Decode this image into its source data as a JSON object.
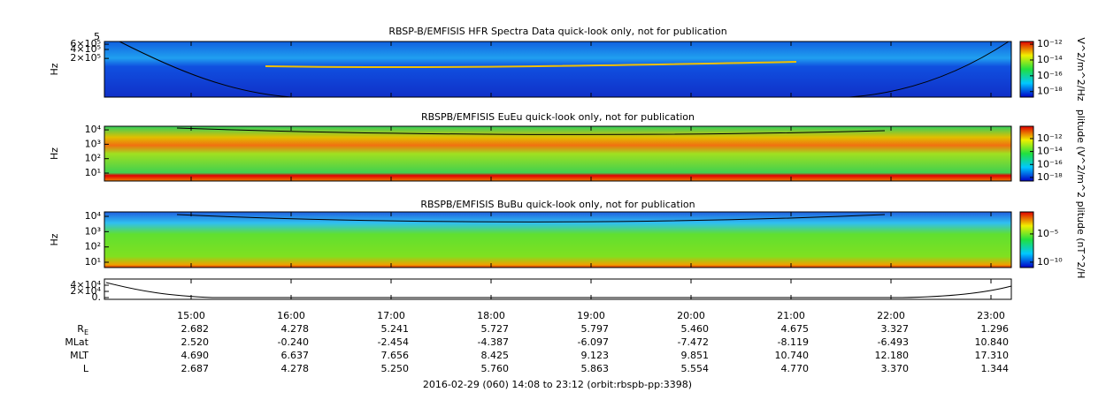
{
  "panels": [
    {
      "title": "RBSP-B/EMFISIS  HFR Spectra Data quick-look only, not for publication",
      "ylabel": "Hz",
      "top_label": "5",
      "log": true,
      "ylim": [
        10000,
        740000
      ],
      "yticks": [
        {
          "value": 600000,
          "label": "6×10⁵"
        },
        {
          "value": 400000,
          "label": "4×10⁵"
        },
        {
          "value": 200000,
          "label": "2×10⁵"
        }
      ],
      "colorbar": {
        "label": "V^2/m^2/Hz",
        "clim": [
          2e-19,
          2.2e-12
        ],
        "ticks": [
          {
            "value": 1e-12,
            "label": "10⁻¹²"
          },
          {
            "value": 1e-14,
            "label": "10⁻¹⁴"
          },
          {
            "value": 1e-16,
            "label": "10⁻¹⁶"
          },
          {
            "value": 1e-18,
            "label": "10⁻¹⁸"
          }
        ]
      }
    },
    {
      "title": "RBSPB/EMFISIS  EuEu quick-look only, not for publication",
      "ylabel": "Hz",
      "log": true,
      "ylim": [
        2.8,
        17800
      ],
      "yticks": [
        {
          "value": 10000,
          "label": "10⁴"
        },
        {
          "value": 1000,
          "label": "10³"
        },
        {
          "value": 100,
          "label": "10²"
        },
        {
          "value": 10,
          "label": "10¹"
        }
      ],
      "colorbar": {
        "label": "plitude (V^2/m^2",
        "clim": [
          2.8e-19,
          8e-11
        ],
        "ticks": [
          {
            "value": 1e-12,
            "label": "10⁻¹²"
          },
          {
            "value": 1e-14,
            "label": "10⁻¹⁴"
          },
          {
            "value": 1e-16,
            "label": "10⁻¹⁶"
          },
          {
            "value": 1e-18,
            "label": "10⁻¹⁸"
          }
        ]
      }
    },
    {
      "title": "RBSPB/EMFISIS  BuBu quick-look only, not for publication",
      "ylabel": "Hz",
      "log": true,
      "ylim": [
        4.5,
        19500
      ],
      "yticks": [
        {
          "value": 10000,
          "label": "10⁴"
        },
        {
          "value": 1000,
          "label": "10³"
        },
        {
          "value": 100,
          "label": "10²"
        },
        {
          "value": 10,
          "label": "10¹"
        }
      ],
      "colorbar": {
        "label": "plitude (nT^2/H",
        "clim": [
          1.1e-11,
          0.08
        ],
        "ticks": [
          {
            "value": 1e-05,
            "label": "10⁻⁵"
          },
          {
            "value": 1e-10,
            "label": "10⁻¹⁰"
          }
        ]
      }
    },
    {
      "log": false,
      "ylim": [
        -5700,
        60000
      ],
      "yticks": [
        {
          "value": 40000,
          "label": "4×10⁴"
        },
        {
          "value": 20000,
          "label": "2×10⁴"
        },
        {
          "value": 0,
          "label": "0."
        }
      ]
    }
  ],
  "ephemeris": {
    "times": [
      "15:00",
      "16:00",
      "17:00",
      "18:00",
      "19:00",
      "20:00",
      "21:00",
      "22:00",
      "23:00"
    ],
    "rows": [
      {
        "label": "R",
        "subscript": "E",
        "values": [
          "2.682",
          "4.278",
          "5.241",
          "5.727",
          "5.797",
          "5.460",
          "4.675",
          "3.327",
          "1.296"
        ]
      },
      {
        "label": "MLat",
        "values": [
          "2.520",
          "-0.240",
          "-2.454",
          "-4.387",
          "-6.097",
          "-7.472",
          "-8.119",
          "-6.493",
          "10.840"
        ]
      },
      {
        "label": "MLT",
        "values": [
          "4.690",
          "6.637",
          "7.656",
          "8.425",
          "9.123",
          "9.851",
          "10.740",
          "12.180",
          "17.310"
        ]
      },
      {
        "label": "L",
        "values": [
          "2.687",
          "4.278",
          "5.250",
          "5.760",
          "5.863",
          "5.554",
          "4.770",
          "3.370",
          "1.344"
        ]
      }
    ]
  },
  "footer": "2016-02-29 (060) 14:08 to 23:12 (orbit:rbspb-pp:3398)"
}
